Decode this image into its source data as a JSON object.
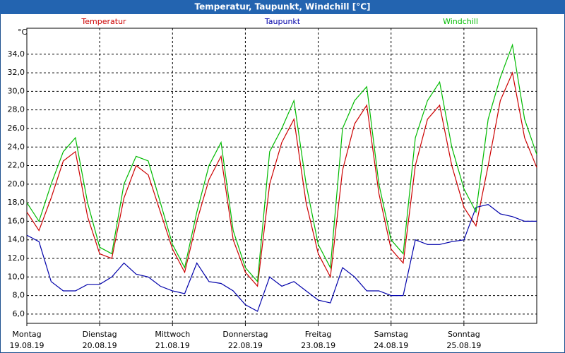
{
  "chart_data": {
    "type": "line",
    "title": "Temperatur, Taupunkt, Windchill [°C]",
    "y_label": "°C",
    "x": [
      0,
      4,
      8,
      12,
      16,
      20,
      24,
      28,
      32,
      36,
      40,
      44,
      48,
      52,
      56,
      60,
      64,
      68,
      72,
      76,
      80,
      84,
      88,
      92,
      96,
      100,
      104,
      108,
      112,
      116,
      120,
      124,
      128,
      132,
      136,
      140,
      144,
      148,
      152,
      156,
      160,
      164,
      168
    ],
    "xlim": [
      0,
      168
    ],
    "xticks": [
      {
        "value": 0,
        "label": "Montag",
        "date": "19.08.19"
      },
      {
        "value": 24,
        "label": "Dienstag",
        "date": "20.08.19"
      },
      {
        "value": 48,
        "label": "Mittwoch",
        "date": "21.08.19"
      },
      {
        "value": 72,
        "label": "Donnerstag",
        "date": "22.08.19"
      },
      {
        "value": 96,
        "label": "Freitag",
        "date": "23.08.19"
      },
      {
        "value": 120,
        "label": "Samstag",
        "date": "24.08.19"
      },
      {
        "value": 144,
        "label": "Sonntag",
        "date": "25.08.19"
      }
    ],
    "ylim": [
      5,
      36.8
    ],
    "yticks": [
      {
        "value": 6,
        "label": "6,0"
      },
      {
        "value": 8,
        "label": "8,0"
      },
      {
        "value": 10,
        "label": "10,0"
      },
      {
        "value": 12,
        "label": "12,0"
      },
      {
        "value": 14,
        "label": "14,0"
      },
      {
        "value": 16,
        "label": "16,0"
      },
      {
        "value": 18,
        "label": "18,0"
      },
      {
        "value": 20,
        "label": "20,0"
      },
      {
        "value": 22,
        "label": "22,0"
      },
      {
        "value": 24,
        "label": "24,0"
      },
      {
        "value": 26,
        "label": "26,0"
      },
      {
        "value": 28,
        "label": "28,0"
      },
      {
        "value": 30,
        "label": "30,0"
      },
      {
        "value": 32,
        "label": "32,0"
      },
      {
        "value": 34,
        "label": "34,0"
      }
    ],
    "grid": true,
    "series": [
      {
        "name": "Temperatur",
        "color": "#cc0000",
        "values": [
          17.0,
          15.0,
          18.5,
          22.5,
          23.5,
          16.5,
          12.5,
          12.0,
          18.5,
          22.0,
          21.0,
          17.0,
          13.0,
          10.5,
          16.0,
          20.5,
          23.0,
          14.0,
          10.5,
          9.0,
          20.0,
          24.5,
          27.0,
          18.0,
          12.5,
          10.0,
          21.5,
          26.5,
          28.5,
          19.0,
          13.0,
          11.5,
          22.0,
          27.0,
          28.5,
          22.0,
          17.5,
          15.5,
          22.0,
          29.0,
          32.0,
          25.0,
          21.8
        ]
      },
      {
        "name": "Taupunkt",
        "color": "#0000aa",
        "values": [
          14.5,
          13.8,
          9.5,
          8.5,
          8.5,
          9.2,
          9.2,
          10.0,
          11.5,
          10.3,
          10.0,
          9.0,
          8.5,
          8.2,
          11.5,
          9.5,
          9.3,
          8.5,
          7.0,
          6.3,
          10.0,
          9.0,
          9.5,
          8.5,
          7.5,
          7.2,
          11.0,
          10.0,
          8.5,
          8.5,
          8.0,
          8.0,
          14.0,
          13.5,
          13.5,
          13.8,
          14.0,
          17.5,
          17.8,
          16.8,
          16.5,
          16.0,
          16.0
        ]
      },
      {
        "name": "Windchill",
        "color": "#00bb00",
        "values": [
          18.0,
          16.0,
          20.0,
          23.5,
          25.0,
          18.0,
          13.2,
          12.5,
          20.0,
          23.0,
          22.5,
          18.0,
          13.5,
          11.0,
          17.0,
          22.0,
          24.5,
          15.0,
          11.0,
          9.5,
          23.5,
          26.0,
          29.0,
          20.0,
          13.5,
          11.0,
          26.0,
          29.0,
          30.5,
          20.0,
          14.0,
          12.5,
          25.0,
          29.0,
          31.0,
          24.0,
          19.5,
          17.0,
          27.0,
          31.5,
          35.0,
          27.0,
          23.2
        ]
      }
    ]
  }
}
